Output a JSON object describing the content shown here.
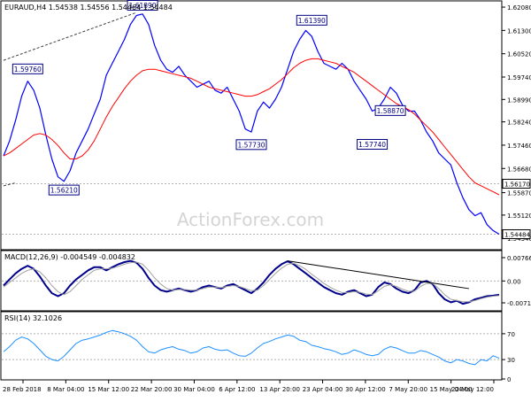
{
  "chart_data": [
    {
      "type": "line",
      "name": "price-panel",
      "symbol_label": "EURAUD,H4",
      "ohlc_label": "1.54538 1.54556 1.54464 1.54484",
      "ylim": [
        1.5405,
        1.622
      ],
      "y_ticks": [
        1.6208,
        1.613,
        1.6052,
        1.5974,
        1.5899,
        1.5824,
        1.5746,
        1.5668,
        1.5587,
        1.5512,
        1.5434
      ],
      "y_tick_labels": [
        "1.62080",
        "1.61300",
        "1.60520",
        "1.59740",
        "1.58990",
        "1.58240",
        "1.57460",
        "1.56680",
        "1.55870",
        "1.55120",
        "1.54340"
      ],
      "x_labels": [
        "28 Feb 2018",
        "8 Mar 04:00",
        "15 Mar 12:00",
        "22 Mar 20:00",
        "30 Mar 04:00",
        "6 Apr 12:00",
        "13 Apr 20:00",
        "23 Apr 04:00",
        "30 Apr 12:00",
        "7 May 20:00",
        "15 May 04:00",
        "22 May 12:00"
      ],
      "series": [
        {
          "color": "#0000ff",
          "values": [
            1.571,
            1.576,
            1.583,
            1.591,
            1.596,
            1.593,
            1.587,
            1.578,
            1.57,
            1.564,
            1.5625,
            1.566,
            1.572,
            1.576,
            1.58,
            1.585,
            1.59,
            1.598,
            1.602,
            1.606,
            1.61,
            1.615,
            1.618,
            1.6185,
            1.615,
            1.608,
            1.603,
            1.6,
            1.599,
            1.601,
            1.598,
            1.596,
            1.594,
            1.595,
            1.596,
            1.593,
            1.592,
            1.594,
            1.59,
            1.586,
            1.58,
            1.579,
            1.586,
            1.589,
            1.587,
            1.59,
            1.594,
            1.6,
            1.606,
            1.61,
            1.613,
            1.611,
            1.606,
            1.602,
            1.601,
            1.6,
            1.602,
            1.6,
            1.596,
            1.593,
            1.59,
            1.586,
            1.587,
            1.59,
            1.594,
            1.592,
            1.588,
            1.586,
            1.586,
            1.583,
            1.579,
            1.576,
            1.572,
            1.57,
            1.568,
            1.562,
            1.557,
            1.553,
            1.551,
            1.552,
            1.548,
            1.546,
            1.5448
          ]
        },
        {
          "color": "#ff0000",
          "values": [
            1.571,
            1.572,
            1.5735,
            1.575,
            1.5765,
            1.578,
            1.5785,
            1.578,
            1.5765,
            1.5745,
            1.572,
            1.57,
            1.57,
            1.571,
            1.573,
            1.576,
            1.58,
            1.584,
            1.5875,
            1.5905,
            1.5935,
            1.596,
            1.598,
            1.5995,
            1.6,
            1.6,
            1.5995,
            1.599,
            1.5985,
            1.598,
            1.5975,
            1.597,
            1.596,
            1.595,
            1.594,
            1.5935,
            1.593,
            1.5925,
            1.592,
            1.5915,
            1.591,
            1.591,
            1.5915,
            1.5925,
            1.5935,
            1.595,
            1.5965,
            1.5985,
            1.6005,
            1.602,
            1.603,
            1.6035,
            1.6035,
            1.603,
            1.6025,
            1.602,
            1.601,
            1.6,
            1.599,
            1.5975,
            1.596,
            1.5945,
            1.593,
            1.5915,
            1.59,
            1.5885,
            1.5875,
            1.5865,
            1.585,
            1.583,
            1.581,
            1.579,
            1.5765,
            1.574,
            1.5715,
            1.569,
            1.5665,
            1.564,
            1.562,
            1.561,
            1.56,
            1.559,
            1.558
          ]
        }
      ],
      "annotations": [
        {
          "label": "1.61890",
          "x": 23,
          "y": 1.6189
        },
        {
          "label": "1.61390",
          "x": 51,
          "y": 1.6139
        },
        {
          "label": "1.59760",
          "x": 4,
          "y": 1.5976
        },
        {
          "label": "1.58870",
          "x": 64,
          "y": 1.5887
        },
        {
          "label": "1.57730",
          "x": 41,
          "y": 1.5773
        },
        {
          "label": "1.57740",
          "x": 61,
          "y": 1.5774
        },
        {
          "label": "1.56210",
          "x": 10,
          "y": 1.5621
        }
      ],
      "trendlines": [
        {
          "x1": 0,
          "y1": 1.603,
          "x2": 22,
          "y2": 1.619
        },
        {
          "x1": 0,
          "y1": 1.561,
          "x2": 2,
          "y2": 1.562
        }
      ],
      "hlines": [
        {
          "y": 1.5617
        },
        {
          "y": 1.5448
        }
      ],
      "price_tags": [
        {
          "label": "1.56170",
          "y": 1.5617
        },
        {
          "label": "1.54484",
          "y": 1.5448
        }
      ],
      "watermark": "ActionForex.com"
    },
    {
      "type": "line",
      "name": "macd-panel",
      "label": "MACD(12,26,9) -0.004549 -0.004832",
      "ylim": [
        -0.0092,
        0.0091
      ],
      "y_ticks": [
        0.00766,
        0.0,
        -0.00717
      ],
      "y_tick_labels": [
        "0.00766",
        "0.00",
        "-0.00717"
      ],
      "series": [
        {
          "color": "#00008b",
          "values": [
            -0.0015,
            0.0005,
            0.0025,
            0.004,
            0.005,
            0.004,
            0.0015,
            -0.0015,
            -0.004,
            -0.005,
            -0.004,
            -0.0015,
            0.0005,
            0.002,
            0.0035,
            0.0045,
            0.0045,
            0.0035,
            0.0045,
            0.0055,
            0.0062,
            0.0066,
            0.006,
            0.004,
            0.001,
            -0.0015,
            -0.003,
            -0.0035,
            -0.003,
            -0.0025,
            -0.003,
            -0.0035,
            -0.003,
            -0.002,
            -0.0015,
            -0.002,
            -0.0025,
            -0.0015,
            -0.001,
            -0.002,
            -0.003,
            -0.004,
            -0.0025,
            -0.0005,
            0.002,
            0.004,
            0.0055,
            0.0065,
            0.0055,
            0.004,
            0.0025,
            0.001,
            -0.0005,
            -0.002,
            -0.003,
            -0.004,
            -0.0045,
            -0.0035,
            -0.003,
            -0.004,
            -0.005,
            -0.0045,
            -0.002,
            -0.0005,
            -0.001,
            -0.0025,
            -0.0035,
            -0.004,
            -0.003,
            -0.0005,
            0.0,
            -0.001,
            -0.004,
            -0.006,
            -0.007,
            -0.0065,
            -0.0075,
            -0.007,
            -0.006,
            -0.0055,
            -0.005,
            -0.0048,
            -0.0045
          ]
        },
        {
          "color": "#a0a0a0",
          "values": [
            -0.002,
            -0.0005,
            0.001,
            0.0025,
            0.0035,
            0.004,
            0.003,
            0.001,
            -0.0015,
            -0.0035,
            -0.0045,
            -0.0035,
            -0.0015,
            0.0005,
            0.002,
            0.0035,
            0.004,
            0.004,
            0.0042,
            0.0048,
            0.0055,
            0.006,
            0.0062,
            0.0055,
            0.0035,
            0.001,
            -0.001,
            -0.0025,
            -0.003,
            -0.0028,
            -0.0028,
            -0.003,
            -0.003,
            -0.0025,
            -0.002,
            -0.002,
            -0.0022,
            -0.0018,
            -0.0015,
            -0.0018,
            -0.0025,
            -0.0032,
            -0.003,
            -0.0015,
            0.0005,
            0.0025,
            0.0042,
            0.0055,
            0.0058,
            0.005,
            0.0038,
            0.0022,
            0.0008,
            -0.0008,
            -0.002,
            -0.003,
            -0.0038,
            -0.0038,
            -0.0035,
            -0.0037,
            -0.0043,
            -0.0045,
            -0.0032,
            -0.0018,
            -0.0012,
            -0.0018,
            -0.0027,
            -0.0034,
            -0.0033,
            -0.0018,
            -0.0008,
            -0.0008,
            -0.0025,
            -0.0045,
            -0.006,
            -0.0064,
            -0.0068,
            -0.0068,
            -0.0064,
            -0.0058,
            -0.0053,
            -0.005,
            -0.0048
          ]
        }
      ],
      "trendlines": [
        {
          "x1": 47,
          "y1": 0.0066,
          "x2": 77,
          "y2": -0.0025
        }
      ]
    },
    {
      "type": "line",
      "name": "rsi-panel",
      "label": "RSI(14) 32.1026",
      "ylim": [
        0,
        100
      ],
      "y_ticks": [
        70,
        30,
        0
      ],
      "y_tick_labels": [
        "70",
        "30",
        "0"
      ],
      "series": [
        {
          "color": "#1e90ff",
          "values": [
            42,
            50,
            60,
            65,
            62,
            55,
            45,
            35,
            30,
            28,
            35,
            45,
            55,
            60,
            62,
            65,
            68,
            72,
            75,
            73,
            70,
            66,
            60,
            50,
            42,
            40,
            45,
            48,
            50,
            46,
            44,
            40,
            42,
            48,
            50,
            46,
            44,
            45,
            40,
            36,
            35,
            40,
            48,
            55,
            58,
            62,
            65,
            68,
            66,
            60,
            58,
            52,
            50,
            47,
            45,
            42,
            38,
            40,
            45,
            42,
            38,
            36,
            38,
            46,
            50,
            48,
            44,
            40,
            40,
            44,
            42,
            38,
            34,
            28,
            25,
            30,
            28,
            24,
            22,
            30,
            28,
            36,
            32
          ]
        }
      ],
      "hlines": [
        {
          "y": 70
        },
        {
          "y": 30
        }
      ]
    }
  ]
}
